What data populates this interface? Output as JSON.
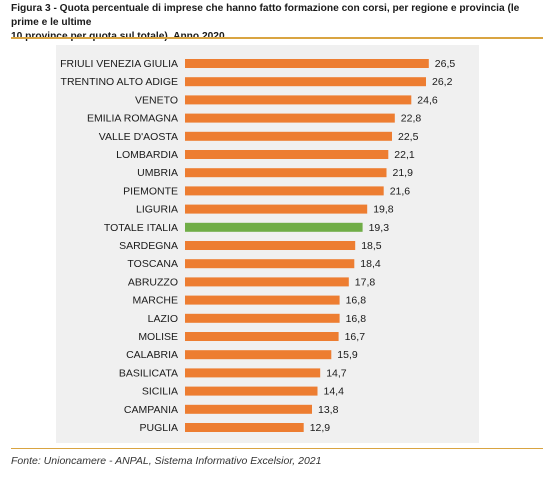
{
  "figure": {
    "title_line1": "Figura 3 - Quota percentuale di imprese che hanno fatto formazione con corsi, per regione e provincia (le prime e le ultime",
    "title_line2": "10 province per quota sul totale). Anno 2020",
    "source": "Fonte: Unioncamere - ANPAL, Sistema Informativo Excelsior, 2021"
  },
  "colors": {
    "bar": "#ED7D31",
    "highlight_bar": "#70AD47",
    "rule": "#D9A441",
    "plot_background": "#F0F0F0"
  },
  "chart_data": {
    "type": "bar",
    "orientation": "horizontal",
    "title": "",
    "xlabel": "",
    "ylabel": "",
    "xlim": [
      0,
      28
    ],
    "grid": false,
    "legend": "none",
    "highlight_category": "TOTALE ITALIA",
    "categories": [
      "FRIULI VENEZIA GIULIA",
      "TRENTINO ALTO ADIGE",
      "VENETO",
      "EMILIA ROMAGNA",
      "VALLE D'AOSTA",
      "LOMBARDIA",
      "UMBRIA",
      "PIEMONTE",
      "LIGURIA",
      "TOTALE ITALIA",
      "SARDEGNA",
      "TOSCANA",
      "ABRUZZO",
      "MARCHE",
      "LAZIO",
      "MOLISE",
      "CALABRIA",
      "BASILICATA",
      "SICILIA",
      "CAMPANIA",
      "PUGLIA"
    ],
    "values": [
      26.5,
      26.2,
      24.6,
      22.8,
      22.5,
      22.1,
      21.9,
      21.6,
      19.8,
      19.3,
      18.5,
      18.4,
      17.8,
      16.8,
      16.8,
      16.7,
      15.9,
      14.7,
      14.4,
      13.8,
      12.9
    ],
    "value_labels": [
      "26,5",
      "26,2",
      "24,6",
      "22,8",
      "22,5",
      "22,1",
      "21,9",
      "21,6",
      "19,8",
      "19,3",
      "18,5",
      "18,4",
      "17,8",
      "16,8",
      "16,8",
      "16,7",
      "15,9",
      "14,7",
      "14,4",
      "13,8",
      "12,9"
    ]
  }
}
